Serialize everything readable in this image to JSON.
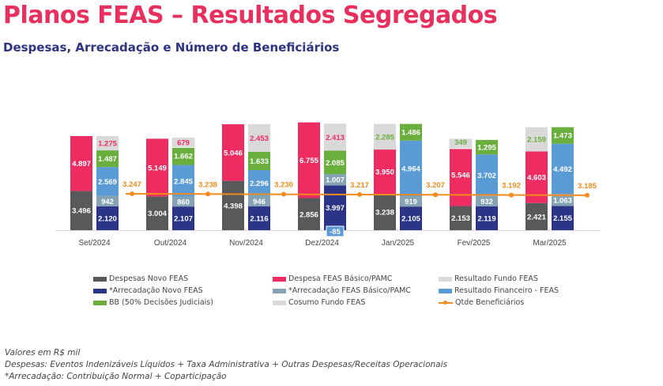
{
  "header": {
    "title": "Planos FEAS – Resultados Segregados",
    "subtitle": "Despesas, Arrecadação e Número de Beneficiários"
  },
  "chart_data": {
    "type": "bar",
    "subtype": "grouped stacked bar with line",
    "categories": [
      "Set/2024",
      "Out/2024",
      "Nov/2024",
      "Dez/2024",
      "Jan/2025",
      "Fev/2025",
      "Mar/2025"
    ],
    "left_stack_series": [
      {
        "name": "Despesas Novo FEAS",
        "color": "#58595b",
        "label_color": "#ffffff",
        "values": [
          3496,
          3004,
          4398,
          2856,
          3238,
          2153,
          2421
        ]
      },
      {
        "name": "Despesa FEAS Básico/PAMC",
        "color": "#ee2c62",
        "label_color": "#ffffff",
        "values": [
          4897,
          5149,
          5046,
          6755,
          3950,
          5546,
          4603
        ]
      },
      {
        "name": "Cosumo Fundo FEAS",
        "color": "#d9d9d9",
        "label_color": "#6aae3e",
        "values": [
          null,
          null,
          null,
          null,
          2285,
          349,
          2159
        ]
      }
    ],
    "right_stack_series": [
      {
        "name": "*Arrecadação Novo FEAS",
        "color": "#2b3486",
        "label_color": "#ffffff",
        "values": [
          2120,
          2107,
          2116,
          3997,
          2105,
          2119,
          2155
        ]
      },
      {
        "name": "*Arrecadação FEAS Básico/PAMC",
        "color": "#85a3b5",
        "label_color": "#ffffff",
        "values": [
          942,
          860,
          946,
          1007,
          919,
          932,
          1063
        ]
      },
      {
        "name": "Resultado Financeiro - FEAS",
        "color": "#5b9bd5",
        "label_color": "#ffffff",
        "values": [
          2569,
          2845,
          2296,
          -85,
          4964,
          3702,
          4492
        ]
      },
      {
        "name": "BB (50% Decisões Judiciais)",
        "color": "#6aae3e",
        "label_color": "#ffffff",
        "values": [
          1487,
          1662,
          1633,
          2085,
          1486,
          1295,
          1473
        ]
      },
      {
        "name": "Resultado Fundo FEAS",
        "color": "#d9d9d9",
        "label_color": "#ee2c62",
        "values": [
          1275,
          679,
          2453,
          2413,
          null,
          null,
          null
        ]
      }
    ],
    "line_series": {
      "name": "Qtde Beneficiários",
      "color": "#f28a1e",
      "values": [
        3.247,
        3.238,
        3.23,
        3.217,
        3.207,
        3.192,
        3.185
      ]
    },
    "value_labels": {
      "left": [
        [
          "3.496",
          "4.897",
          ""
        ],
        [
          "3.004",
          "5.149",
          ""
        ],
        [
          "4.398",
          "5.046",
          ""
        ],
        [
          "2.856",
          "6.755",
          ""
        ],
        [
          "3.238",
          "3.950",
          "2.285"
        ],
        [
          "2.153",
          "5.546",
          "349"
        ],
        [
          "2.421",
          "4.603",
          "2.159"
        ]
      ],
      "right": [
        [
          "2.120",
          "942",
          "2.569",
          "1.487",
          "1.275"
        ],
        [
          "2.107",
          "860",
          "2.845",
          "1.662",
          "679"
        ],
        [
          "2.116",
          "946",
          "2.296",
          "1.633",
          "2.453"
        ],
        [
          "3.997",
          "1.007",
          "-85",
          "2.085",
          "2.413"
        ],
        [
          "2.105",
          "919",
          "4.964",
          "1.486",
          ""
        ],
        [
          "2.119",
          "932",
          "3.702",
          "1.295",
          ""
        ],
        [
          "2.155",
          "1.063",
          "4.492",
          "1.473",
          ""
        ]
      ],
      "line": [
        "3.247",
        "3.238",
        "3.230",
        "3.217",
        "3.207",
        "3.192",
        "3.185"
      ]
    },
    "legend": [
      "Despesas Novo FEAS",
      "Despesa FEAS Básico/PAMC",
      "Resultado Fundo FEAS",
      "*Arrecadação Novo FEAS",
      "*Arrecadação FEAS Básico/PAMC",
      "Resultado Financeiro - FEAS",
      "BB (50% Decisões Judiciais)",
      "Cosumo Fundo FEAS",
      "Qtde Beneficiários"
    ],
    "legend_colors": [
      "#58595b",
      "#ee2c62",
      "#d9d9d9",
      "#2b3486",
      "#85a3b5",
      "#5b9bd5",
      "#6aae3e",
      "#d9d9d9",
      "#f28a1e"
    ],
    "legend_placement": "bottom",
    "grid": false
  },
  "notes": [
    "Valores em R$ mil",
    "Despesas: Eventos Indenizáveis Líquidos + Taxa Administrativa + Outras Despesas/Receitas Operacionais",
    "*Arrecadação: Contribuição Normal + Coparticipação"
  ]
}
